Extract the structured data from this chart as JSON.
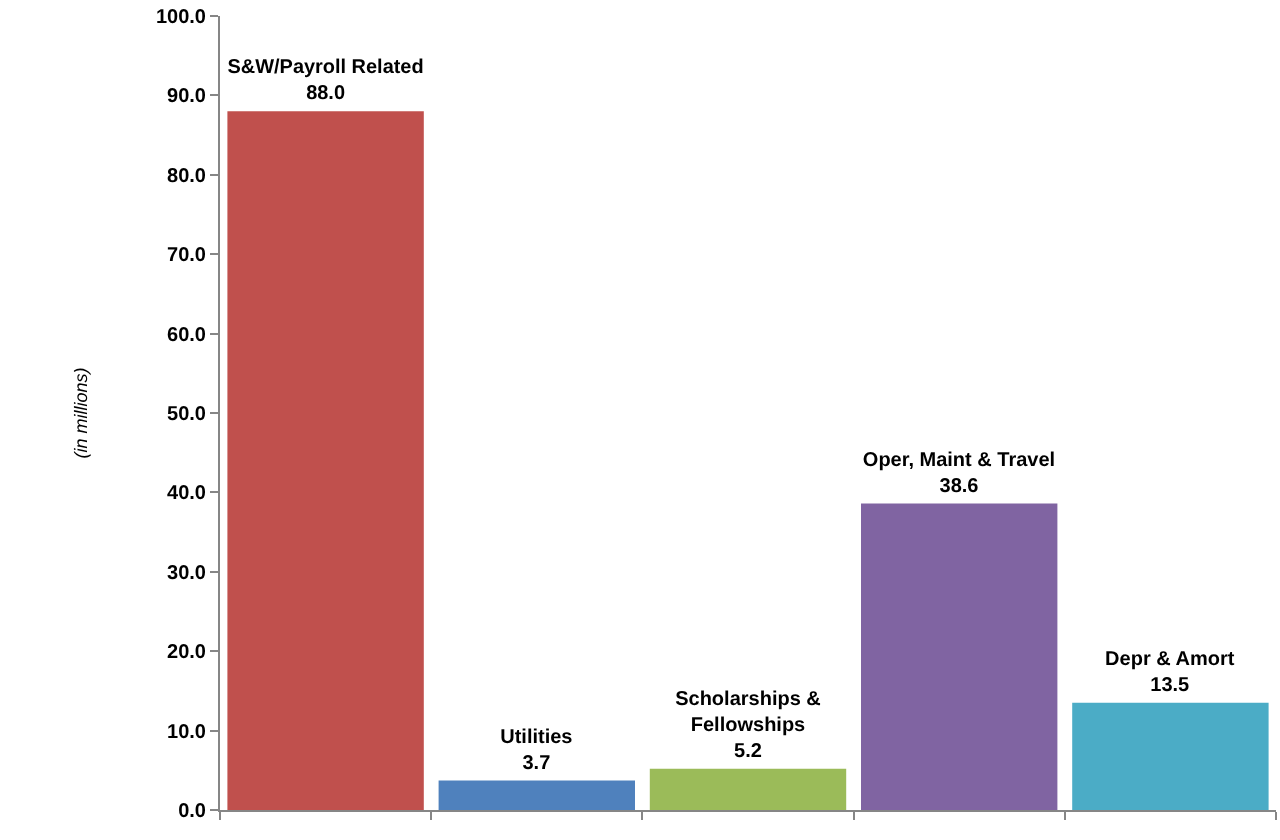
{
  "chart_data": {
    "type": "bar",
    "ylabel": "(in millions)",
    "categories": [
      "S&W/Payroll Related",
      "Utilities",
      "Scholarships & Fellowships",
      "Oper, Maint & Travel",
      "Depr & Amort"
    ],
    "values": [
      88.0,
      3.7,
      5.2,
      38.6,
      13.5
    ],
    "colors": [
      "#c0504d",
      "#4f81bd",
      "#9bbb59",
      "#8064a2",
      "#4bacc6"
    ],
    "ylim": [
      0,
      100
    ],
    "yticks": [
      {
        "value": 0,
        "label": "0.0"
      },
      {
        "value": 10,
        "label": "10.0"
      },
      {
        "value": 20,
        "label": "20.0"
      },
      {
        "value": 30,
        "label": "30.0"
      },
      {
        "value": 40,
        "label": "40.0"
      },
      {
        "value": 50,
        "label": "50.0"
      },
      {
        "value": 60,
        "label": "60.0"
      },
      {
        "value": 70,
        "label": "70.0"
      },
      {
        "value": 80,
        "label": "80.0"
      },
      {
        "value": 90,
        "label": "90.0"
      },
      {
        "value": 100,
        "label": "100.0"
      }
    ],
    "value_labels": [
      "88.0",
      "3.7",
      "5.2",
      "38.6",
      "13.5"
    ],
    "tick_labels": "y"
  }
}
